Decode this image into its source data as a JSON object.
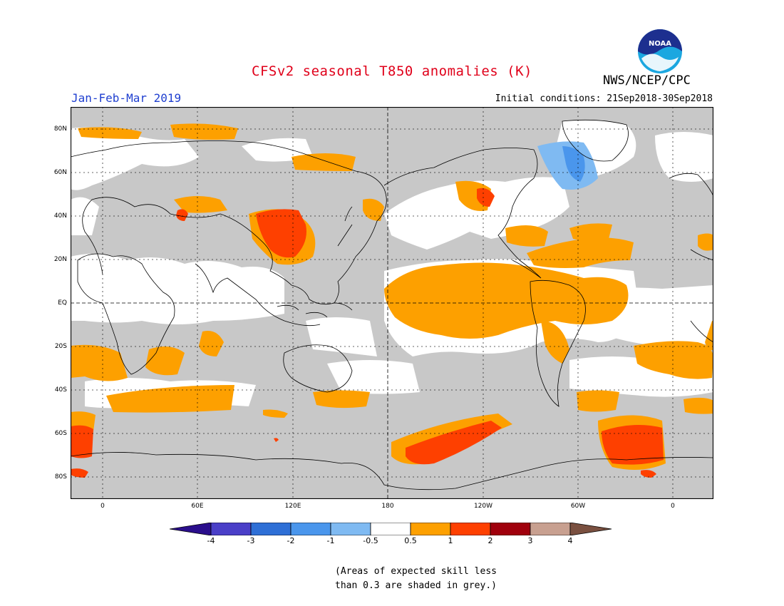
{
  "title": "CFSv2 seasonal T850 anomalies (K)",
  "season": "Jan-Feb-Mar 2019",
  "initial_conditions": "Initial conditions: 21Sep2018-30Sep2018",
  "agency": "NWS/NCEP/CPC",
  "logo_text": "NOAA",
  "lat_labels": [
    "80N",
    "60N",
    "40N",
    "20N",
    "EQ",
    "20S",
    "40S",
    "60S",
    "80S"
  ],
  "lon_labels": [
    "0",
    "60E",
    "120E",
    "180",
    "120W",
    "60W",
    "0"
  ],
  "colorbar": {
    "ticks": [
      "-4",
      "-3",
      "-2",
      "-1",
      "-0.5",
      "0.5",
      "1",
      "2",
      "3",
      "4"
    ],
    "colors": [
      "#2a0e8c",
      "#4a3fc8",
      "#2e6fd6",
      "#4a96ec",
      "#7fbaf2",
      "#ffffff",
      "#fda000",
      "#fe4000",
      "#a0000c",
      "#c8a090",
      "#7a5040"
    ]
  },
  "note": [
    "(Areas of expected skill less",
    "than 0.3 are shaded in grey.)"
  ],
  "colors": {
    "title": "#e0001a",
    "season": "#1f3fd0",
    "grey_mask": "#c8c8c8",
    "orange": "#fda000",
    "red": "#fe4000",
    "light_blue": "#7fbaf2",
    "blue": "#4a96ec"
  }
}
